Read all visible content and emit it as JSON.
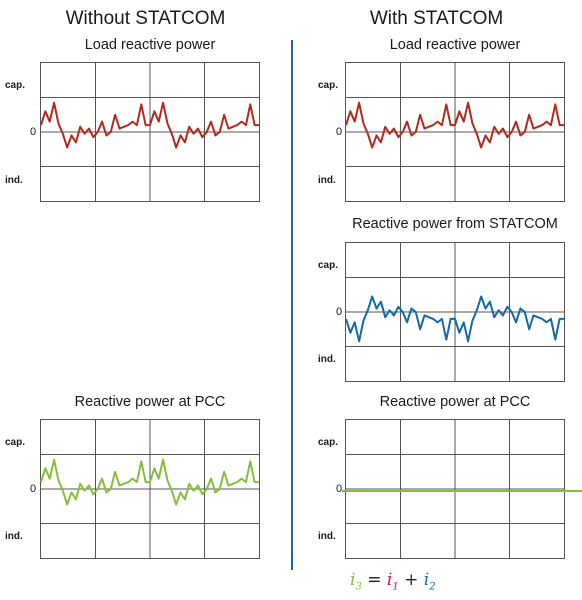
{
  "columns": {
    "left_title": "Without STATCOM",
    "right_title": "With STATCOM"
  },
  "axis_labels": {
    "top": "cap.",
    "zero": "0",
    "bottom": "ind."
  },
  "panels": {
    "left_load": {
      "title": "Load reactive power",
      "color": "#b02a1e"
    },
    "left_pcc": {
      "title": "Reactive power at PCC",
      "color": "#86bd3c"
    },
    "right_load": {
      "title": "Load reactive power",
      "color": "#b02a1e"
    },
    "right_statcom": {
      "title": "Reactive power from STATCOM",
      "color": "#1668a8"
    },
    "right_pcc": {
      "title": "Reactive power at PCC",
      "color": "#86bd3c"
    }
  },
  "formula": {
    "lhs": "i",
    "lhs_sub": "3",
    "eq": " = ",
    "t1": "i",
    "t1_sub": "1",
    "plus": " + ",
    "t2": "i",
    "t2_sub": "2",
    "colors": {
      "i3": "#86bd3c",
      "i1": "#c8174f",
      "i2": "#1668a8"
    }
  },
  "chart_data": {
    "type": "line",
    "yrange": [
      -1,
      1
    ],
    "grid": true,
    "waveform": [
      0.2,
      0.6,
      0.3,
      0.85,
      0.25,
      -0.05,
      -0.45,
      -0.1,
      -0.3,
      0.15,
      -0.05,
      0.1,
      -0.15,
      0.0,
      0.3,
      -0.1,
      0.0,
      0.5,
      0.1,
      0.15,
      0.2,
      0.3,
      0.2,
      0.8,
      0.2
    ],
    "waveform_statcom": [
      -0.2,
      -0.6,
      -0.3,
      -0.85,
      -0.25,
      0.05,
      0.45,
      0.1,
      0.3,
      -0.15,
      0.05,
      -0.1,
      0.15,
      0.0,
      -0.3,
      0.1,
      0.0,
      -0.5,
      -0.1,
      -0.15,
      -0.2,
      -0.3,
      -0.2,
      -0.8,
      -0.2
    ],
    "pcc_with_statcom": 0.0
  }
}
